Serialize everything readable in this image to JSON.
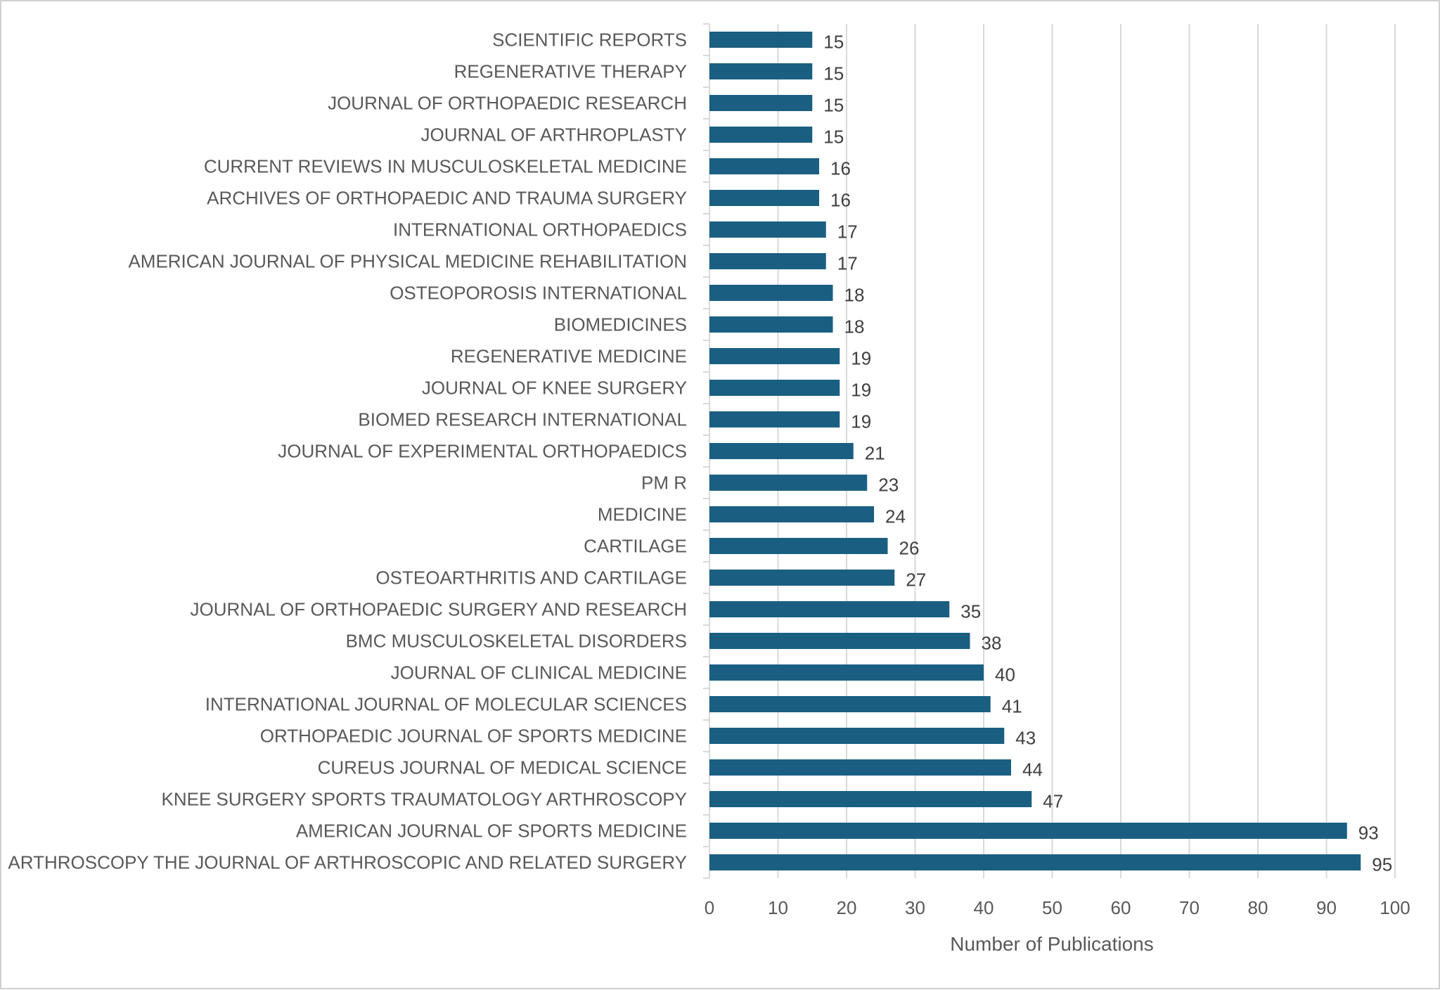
{
  "chart_data": {
    "type": "bar",
    "orientation": "horizontal",
    "title": "",
    "xlabel": "Number of Publications",
    "ylabel": "",
    "xlim": [
      0,
      100
    ],
    "xticks": [
      "0",
      "10",
      "20",
      "30",
      "40",
      "50",
      "60",
      "70",
      "80",
      "90",
      "100"
    ],
    "grid": "vertical",
    "legend": "none",
    "bar_color": "#1a5f82",
    "categories": [
      "SCIENTIFIC REPORTS",
      "REGENERATIVE THERAPY",
      "JOURNAL OF ORTHOPAEDIC RESEARCH",
      "JOURNAL OF ARTHROPLASTY",
      "CURRENT REVIEWS IN MUSCULOSKELETAL MEDICINE",
      "ARCHIVES OF ORTHOPAEDIC AND TRAUMA SURGERY",
      "INTERNATIONAL ORTHOPAEDICS",
      "AMERICAN JOURNAL OF PHYSICAL MEDICINE REHABILITATION",
      "OSTEOPOROSIS INTERNATIONAL",
      "BIOMEDICINES",
      "REGENERATIVE MEDICINE",
      "JOURNAL OF KNEE SURGERY",
      "BIOMED RESEARCH INTERNATIONAL",
      "JOURNAL OF EXPERIMENTAL ORTHOPAEDICS",
      "PM R",
      "MEDICINE",
      "CARTILAGE",
      "OSTEOARTHRITIS AND CARTILAGE",
      "JOURNAL OF ORTHOPAEDIC SURGERY AND RESEARCH",
      "BMC MUSCULOSKELETAL DISORDERS",
      "JOURNAL OF CLINICAL MEDICINE",
      "INTERNATIONAL JOURNAL OF MOLECULAR SCIENCES",
      "ORTHOPAEDIC JOURNAL OF SPORTS MEDICINE",
      "CUREUS JOURNAL OF MEDICAL SCIENCE",
      "KNEE SURGERY SPORTS TRAUMATOLOGY ARTHROSCOPY",
      "AMERICAN JOURNAL OF SPORTS MEDICINE",
      "ARTHROSCOPY THE JOURNAL OF ARTHROSCOPIC AND RELATED SURGERY"
    ],
    "values": [
      15,
      15,
      15,
      15,
      16,
      16,
      17,
      17,
      18,
      18,
      19,
      19,
      19,
      21,
      23,
      24,
      26,
      27,
      35,
      38,
      40,
      41,
      43,
      44,
      47,
      93,
      95
    ]
  }
}
